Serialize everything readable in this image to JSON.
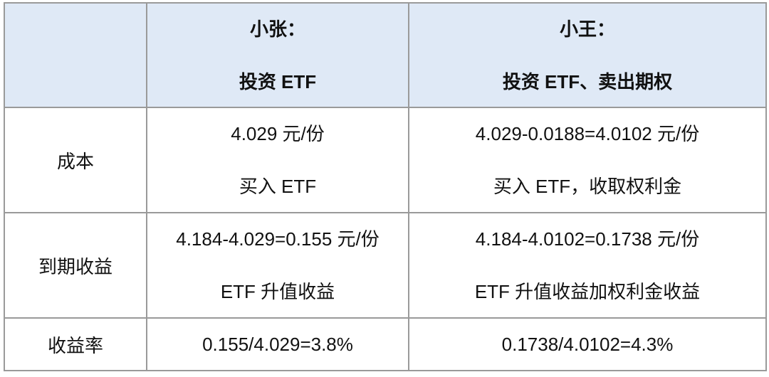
{
  "table": {
    "columns": [
      {
        "name": "小张：",
        "subtitle": "投资 ETF"
      },
      {
        "name": "小王：",
        "subtitle": "投资 ETF、卖出期权"
      }
    ],
    "rows": [
      {
        "label": "成本",
        "cells": [
          [
            "4.029 元/份",
            "买入 ETF"
          ],
          [
            "4.029-0.0188=4.0102 元/份",
            "买入 ETF，收取权利金"
          ]
        ]
      },
      {
        "label": "到期收益",
        "cells": [
          [
            "4.184-4.029=0.155 元/份",
            "ETF 升值收益"
          ],
          [
            "4.184-4.0102=0.1738 元/份",
            "ETF 升值收益加权利金收益"
          ]
        ]
      },
      {
        "label": "收益率",
        "cells": [
          [
            "0.155/4.029=3.8%"
          ],
          [
            "0.1738/4.0102=4.3%"
          ]
        ]
      }
    ]
  }
}
